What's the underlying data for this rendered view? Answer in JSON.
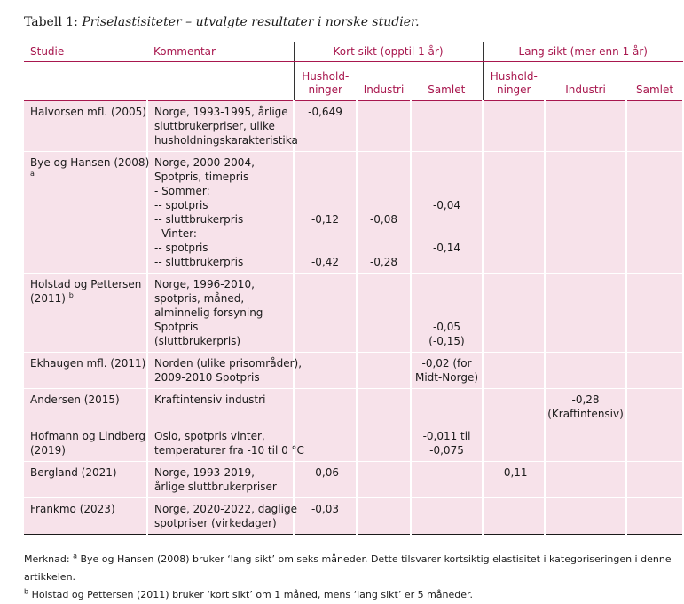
{
  "caption": {
    "label": "Tabell 1:",
    "title": "Priselastisiteter – utvalgte resultater i norske studier."
  },
  "headers": {
    "study": "Studie",
    "comment": "Kommentar",
    "short_term": "Kort sikt (opptil 1 år)",
    "long_term": "Lang sikt (mer enn 1 år)",
    "households": [
      "Hushold-",
      "ninger"
    ],
    "industry": "Industri",
    "total": "Samlet"
  },
  "rows": [
    {
      "study": [
        "Halvorsen mfl. (2005)"
      ],
      "comment": [
        "Norge, 1993-1995, årlige",
        "sluttbrukerpriser, ulike",
        "husholdningskarakteristika"
      ],
      "sh": [
        "-0,649"
      ],
      "si": [],
      "st": [],
      "lh": [],
      "li": [],
      "lt": []
    },
    {
      "study": [
        "Bye og Hansen (2008)"
      ],
      "study_sup": "a",
      "comment": [
        "Norge, 2000-2004,",
        "Spotpris, timepris",
        "- Sommer:",
        "-- spotpris",
        "-- sluttbrukerpris",
        "- Vinter:",
        "-- spotpris",
        "-- sluttbrukerpris"
      ],
      "sh": [
        "",
        "",
        "",
        "",
        "-0,12",
        "",
        "",
        "-0,42"
      ],
      "si": [
        "",
        "",
        "",
        "",
        "-0,08",
        "",
        "",
        "-0,28"
      ],
      "st": [
        "",
        "",
        "",
        "-0,04",
        "",
        "",
        "-0,14",
        ""
      ],
      "lh": [],
      "li": [],
      "lt": []
    },
    {
      "study": [
        "Holstad og Pettersen",
        "(2011)"
      ],
      "study_sup": "b",
      "comment": [
        "Norge, 1996-2010,",
        "spotpris, måned,",
        "alminnelig forsyning",
        "Spotpris",
        "(sluttbrukerpris)"
      ],
      "sh": [],
      "si": [],
      "st": [
        "",
        "",
        "",
        "-0,05",
        "(-0,15)"
      ],
      "lh": [],
      "li": [],
      "lt": []
    },
    {
      "study": [
        "Ekhaugen mfl. (2011)"
      ],
      "comment": [
        "Norden (ulike prisområder),",
        "2009-2010 Spotpris"
      ],
      "sh": [],
      "si": [],
      "st": [
        "-0,02 (for",
        "Midt-Norge)"
      ],
      "lh": [],
      "li": [],
      "lt": []
    },
    {
      "study": [
        "Andersen (2015)"
      ],
      "comment": [
        "Kraftintensiv industri"
      ],
      "sh": [],
      "si": [],
      "st": [],
      "lh": [],
      "li": [
        "-0,28",
        "(Kraftintensiv)"
      ],
      "lt": []
    },
    {
      "study": [
        "Hofmann og Lindberg",
        "(2019)"
      ],
      "comment": [
        "Oslo, spotpris vinter,",
        "temperaturer fra -10 til 0 °C"
      ],
      "sh": [],
      "si": [],
      "st": [
        "-0,011 til",
        "-0,075"
      ],
      "lh": [],
      "li": [],
      "lt": []
    },
    {
      "study": [
        "Bergland (2021)"
      ],
      "comment": [
        "Norge, 1993-2019,",
        "årlige sluttbrukerpriser"
      ],
      "sh": [
        "-0,06"
      ],
      "si": [],
      "st": [],
      "lh": [
        "-0,11"
      ],
      "li": [],
      "lt": []
    },
    {
      "study": [
        "Frankmo (2023)"
      ],
      "comment": [
        "Norge, 2020-2022, daglige",
        "spotpriser (virkedager)"
      ],
      "sh": [
        "-0,03"
      ],
      "si": [],
      "st": [],
      "lh": [],
      "li": [],
      "lt": []
    }
  ],
  "notes": {
    "label": "Merknad:",
    "note_a_sup": "a",
    "note_a": "Bye og Hansen (2008) bruker ‘lang sikt’ om seks måneder. Dette tilsvarer kortsiktig elastisitet i kategoriseringen i denne artikkelen.",
    "note_b_sup": "b",
    "note_b": "Holstad og Pettersen (2011) bruker ‘kort sikt’ om 1 måned, mens ‘lang sikt’ er 5 måneder."
  }
}
